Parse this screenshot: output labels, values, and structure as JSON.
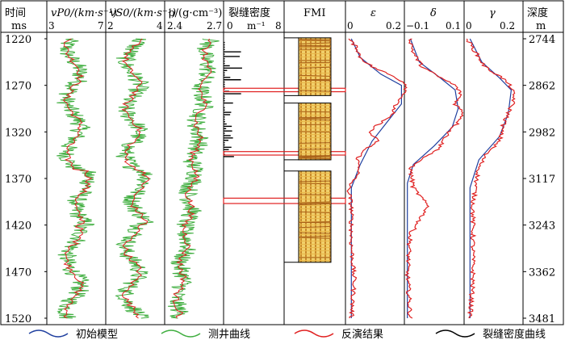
{
  "left_axis": {
    "title": "时间",
    "unit": "ms",
    "tick_values": [
      1220,
      1270,
      1320,
      1370,
      1420,
      1470,
      1520
    ]
  },
  "right_axis": {
    "title": "深度",
    "unit": "m",
    "tick_values": [
      2744,
      2862,
      2982,
      3117,
      3243,
      3362,
      3481
    ]
  },
  "tracks": {
    "vp": {
      "header": "vP0/(km·s⁻¹)",
      "min_label": "3",
      "max_label": "7"
    },
    "vs": {
      "header": "vS0/(km·s⁻¹)",
      "min_label": "2",
      "max_label": "4"
    },
    "rho": {
      "header": "ρ/(g·cm⁻³)",
      "min_label": "2.4",
      "max_label": "2.7"
    },
    "density": {
      "header": "裂缝密度",
      "unit": "m⁻¹",
      "min_label": "0",
      "max_label": "8"
    },
    "fmi": {
      "header": "FMI"
    },
    "epsilon": {
      "header": "ε",
      "min_label": "0",
      "max_label": "0.2"
    },
    "delta": {
      "header": "δ",
      "min_label": "−0.1",
      "max_label": "0.1"
    },
    "gamma": {
      "header": "γ",
      "min_label": "0",
      "max_label": "0.2"
    }
  },
  "legend": [
    {
      "label": "初始模型",
      "color": "#1f3f9f"
    },
    {
      "label": "测井曲线",
      "color": "#3fae3f"
    },
    {
      "label": "反演结果",
      "color": "#e02020"
    },
    {
      "label": "裂缝密度曲线",
      "color": "#000000"
    }
  ],
  "chart_data": {
    "type": "line",
    "title": "",
    "y_axis": {
      "label": "时间/ms",
      "range": [
        1220,
        1520
      ],
      "inverted": true
    },
    "y2_axis": {
      "label": "深度/m",
      "ticks": [
        2744,
        2862,
        2982,
        3117,
        3243,
        3362,
        3481
      ]
    },
    "fracture_zones_ms": [
      [
        1274,
        1276
      ],
      [
        1342,
        1344
      ],
      [
        1392,
        1396
      ]
    ],
    "fmi_windows_ms": [
      [
        1219,
        1281
      ],
      [
        1289,
        1350
      ],
      [
        1362,
        1460
      ]
    ],
    "series": [
      {
        "track": "epsilon",
        "name": "初始模型",
        "time_ms": [
          1220,
          1240,
          1258,
          1270,
          1290,
          1310,
          1330,
          1355,
          1380,
          1520
        ],
        "values": [
          0.02,
          0.05,
          0.12,
          0.19,
          0.19,
          0.14,
          0.09,
          0.05,
          0.02,
          0.02
        ]
      },
      {
        "track": "epsilon",
        "name": "反演结果",
        "time_ms": [
          1220,
          1230,
          1240,
          1250,
          1260,
          1265,
          1270,
          1280,
          1290,
          1300,
          1310,
          1320,
          1330,
          1340,
          1350,
          1360,
          1370,
          1380,
          1400,
          1440,
          1480,
          1520
        ],
        "values": [
          0.01,
          0.04,
          0.05,
          0.09,
          0.16,
          0.19,
          0.21,
          0.2,
          0.17,
          0.16,
          0.12,
          0.08,
          0.11,
          0.06,
          0.04,
          0.05,
          0.03,
          0.01,
          0.02,
          0.02,
          0.03,
          0.02
        ]
      },
      {
        "track": "delta",
        "name": "初始模型",
        "time_ms": [
          1220,
          1245,
          1262,
          1275,
          1295,
          1315,
          1335,
          1355,
          1375,
          1520
        ],
        "values": [
          -0.08,
          -0.05,
          0.02,
          0.07,
          0.08,
          0.06,
          0.0,
          -0.07,
          -0.09,
          -0.09
        ]
      },
      {
        "track": "delta",
        "name": "反演结果",
        "time_ms": [
          1220,
          1235,
          1250,
          1260,
          1270,
          1280,
          1290,
          1300,
          1310,
          1320,
          1330,
          1340,
          1350,
          1360,
          1380,
          1400,
          1430,
          1470,
          1520
        ],
        "values": [
          -0.08,
          -0.07,
          -0.04,
          0.01,
          0.07,
          0.09,
          0.07,
          0.1,
          0.08,
          0.05,
          0.03,
          0.01,
          -0.05,
          -0.08,
          -0.07,
          -0.02,
          -0.08,
          -0.09,
          -0.08
        ]
      },
      {
        "track": "gamma",
        "name": "初始模型",
        "time_ms": [
          1220,
          1245,
          1262,
          1275,
          1300,
          1325,
          1350,
          1380,
          1520
        ],
        "values": [
          0.02,
          0.06,
          0.12,
          0.16,
          0.15,
          0.12,
          0.05,
          0.02,
          0.02
        ]
      },
      {
        "track": "gamma",
        "name": "反演结果",
        "time_ms": [
          1220,
          1235,
          1250,
          1262,
          1272,
          1285,
          1300,
          1315,
          1330,
          1345,
          1360,
          1375,
          1400,
          1440,
          1480,
          1520
        ],
        "values": [
          0.01,
          0.04,
          0.07,
          0.13,
          0.16,
          0.17,
          0.15,
          0.13,
          0.12,
          0.07,
          0.05,
          0.04,
          0.03,
          0.03,
          0.03,
          0.02
        ]
      }
    ]
  }
}
